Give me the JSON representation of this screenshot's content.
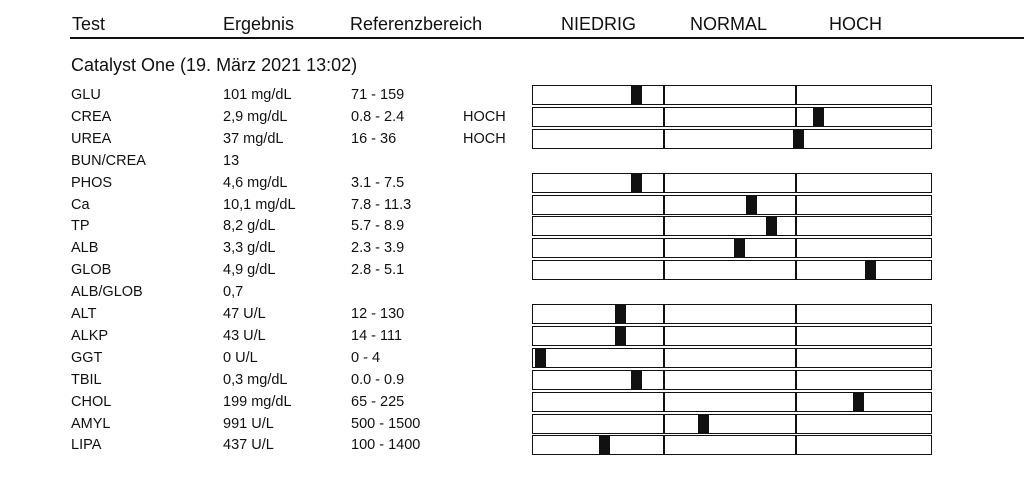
{
  "header": {
    "test": "Test",
    "result": "Ergebnis",
    "reference": "Referenzbereich",
    "low": "NIEDRIG",
    "normal": "NORMAL",
    "high": "HOCH"
  },
  "panel": {
    "title": "Catalyst One (19. März 2021 13:02)"
  },
  "rows": [
    {
      "name": "GLU",
      "result": "101 mg/dL",
      "ref": "71 - 159",
      "flag": "",
      "level": 0.26,
      "bar": true
    },
    {
      "name": "CREA",
      "result": "2,9 mg/dL",
      "ref": "0.8 - 2.4",
      "flag": "HOCH",
      "level": 0.72,
      "bar": true
    },
    {
      "name": "UREA",
      "result": "37 mg/dL",
      "ref": "16 - 36",
      "flag": "HOCH",
      "level": 0.67,
      "bar": true
    },
    {
      "name": "BUN/CREA",
      "result": "13",
      "ref": "",
      "flag": "",
      "level": null,
      "bar": false
    },
    {
      "name": "PHOS",
      "result": "4,6 mg/dL",
      "ref": "3.1 - 7.5",
      "flag": "",
      "level": 0.26,
      "bar": true
    },
    {
      "name": "Ca",
      "result": "10,1 mg/dL",
      "ref": "7.8 - 11.3",
      "flag": "",
      "level": 0.55,
      "bar": true
    },
    {
      "name": "TP",
      "result": "8,2 g/dL",
      "ref": "5.7 - 8.9",
      "flag": "",
      "level": 0.6,
      "bar": true
    },
    {
      "name": "ALB",
      "result": "3,3 g/dL",
      "ref": "2.3 - 3.9",
      "flag": "",
      "level": 0.52,
      "bar": true
    },
    {
      "name": "GLOB",
      "result": "4,9 g/dL",
      "ref": "2.8 - 5.1",
      "flag": "",
      "level": 0.85,
      "bar": true
    },
    {
      "name": "ALB/GLOB",
      "result": "0,7",
      "ref": "",
      "flag": "",
      "level": null,
      "bar": false
    },
    {
      "name": "ALT",
      "result": "47 U/L",
      "ref": "12 - 130",
      "flag": "",
      "level": 0.22,
      "bar": true
    },
    {
      "name": "ALKP",
      "result": "43 U/L",
      "ref": "14 - 111",
      "flag": "",
      "level": 0.22,
      "bar": true
    },
    {
      "name": "GGT",
      "result": "0 U/L",
      "ref": "0 - 4",
      "flag": "",
      "level": 0.02,
      "bar": true
    },
    {
      "name": "TBIL",
      "result": "0,3 mg/dL",
      "ref": "0.0 - 0.9",
      "flag": "",
      "level": 0.26,
      "bar": true
    },
    {
      "name": "CHOL",
      "result": "199 mg/dL",
      "ref": "65 - 225",
      "flag": "",
      "level": 0.82,
      "bar": true
    },
    {
      "name": "AMYL",
      "result": "991 U/L",
      "ref": "500 - 1500",
      "flag": "",
      "level": 0.43,
      "bar": true
    },
    {
      "name": "LIPA",
      "result": "437 U/L",
      "ref": "100 - 1400",
      "flag": "",
      "level": 0.18,
      "bar": true
    }
  ]
}
